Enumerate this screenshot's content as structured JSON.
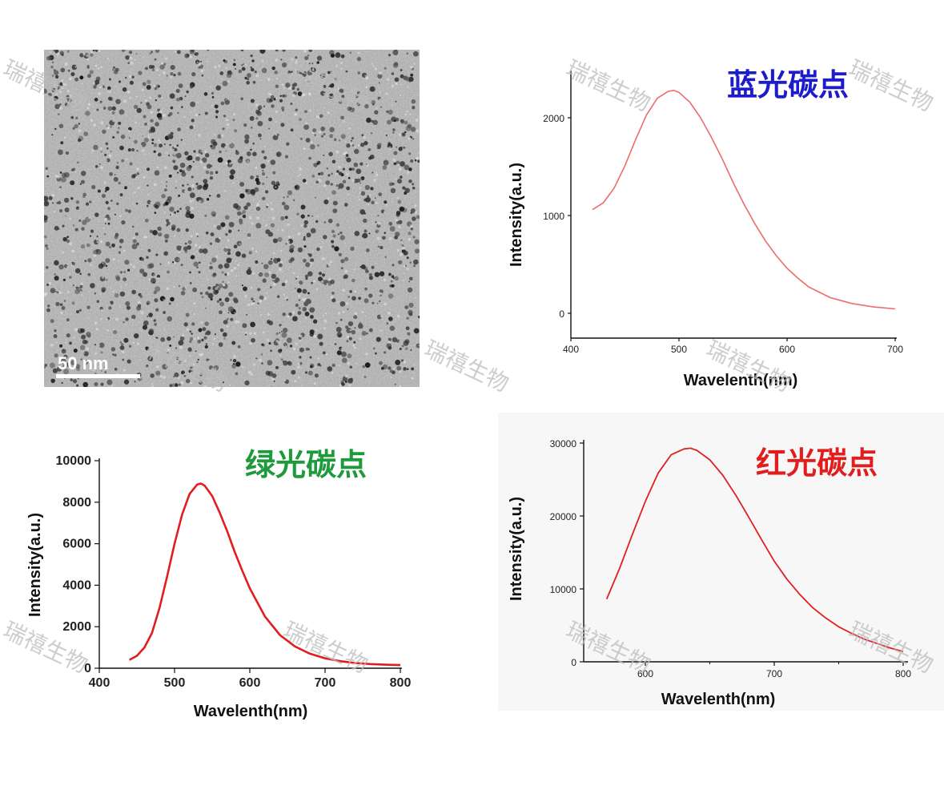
{
  "micrograph": {
    "scale_label": "50 nm"
  },
  "watermark": {
    "text": "瑞禧生物"
  },
  "chart_data": [
    {
      "type": "line",
      "title": "蓝光碳点",
      "title_color": "#1c1ccc",
      "line_color": "#ee6b6b",
      "xlabel": "Wavelenth(nm)",
      "ylabel": "Intensity(a.u.)",
      "xlim": [
        400,
        700
      ],
      "ylim": [
        -150,
        2500
      ],
      "x_ticks": [
        "400",
        "500",
        "600",
        "700"
      ],
      "y_ticks": [
        "0",
        "1000",
        "2000"
      ],
      "x_tick_values": [
        400,
        500,
        600,
        700
      ],
      "y_tick_values": [
        0,
        1000,
        2000
      ],
      "series": [
        {
          "name": "blue CDs",
          "x": [
            420,
            430,
            440,
            450,
            460,
            470,
            480,
            490,
            495,
            500,
            510,
            520,
            530,
            540,
            550,
            560,
            570,
            580,
            590,
            600,
            610,
            620,
            640,
            660,
            680,
            700
          ],
          "values": [
            1060,
            1130,
            1280,
            1510,
            1780,
            2030,
            2200,
            2270,
            2280,
            2260,
            2160,
            2000,
            1800,
            1580,
            1340,
            1120,
            920,
            740,
            590,
            460,
            360,
            270,
            160,
            100,
            65,
            45
          ]
        }
      ]
    },
    {
      "type": "line",
      "title": "绿光碳点",
      "title_color": "#1e9a3c",
      "line_color": "#e11d1d",
      "xlabel": "Wavelenth(nm)",
      "ylabel": "Intensity(a.u.)",
      "xlim": [
        400,
        800
      ],
      "ylim": [
        0,
        10000
      ],
      "x_ticks": [
        "400",
        "500",
        "600",
        "700",
        "800"
      ],
      "y_ticks": [
        "0",
        "2000",
        "4000",
        "6000",
        "8000",
        "10000"
      ],
      "x_tick_values": [
        400,
        500,
        600,
        700,
        800
      ],
      "y_tick_values": [
        0,
        2000,
        4000,
        6000,
        8000,
        10000
      ],
      "series": [
        {
          "name": "green CDs",
          "x": [
            440,
            450,
            460,
            470,
            480,
            490,
            500,
            510,
            520,
            530,
            535,
            540,
            550,
            560,
            570,
            580,
            590,
            600,
            620,
            640,
            660,
            680,
            700,
            720,
            740,
            760,
            780,
            800
          ],
          "values": [
            400,
            600,
            1000,
            1700,
            2900,
            4400,
            6000,
            7400,
            8400,
            8850,
            8900,
            8800,
            8300,
            7500,
            6600,
            5600,
            4700,
            3850,
            2500,
            1600,
            1050,
            700,
            480,
            340,
            250,
            200,
            170,
            150
          ]
        }
      ]
    },
    {
      "type": "line",
      "title": "红光碳点",
      "title_color": "#e11d1d",
      "line_color": "#e02020",
      "xlabel": "Wavelenth(nm)",
      "ylabel": "Intensity(a.u.)",
      "xlim": [
        560,
        800
      ],
      "ylim": [
        0,
        30000
      ],
      "x_ticks": [
        "600",
        "700",
        "800"
      ],
      "y_ticks": [
        "0",
        "10000",
        "20000",
        "30000"
      ],
      "x_tick_values": [
        600,
        700,
        800
      ],
      "y_tick_values": [
        0,
        10000,
        20000,
        30000
      ],
      "series": [
        {
          "name": "red CDs",
          "x": [
            570,
            580,
            590,
            600,
            610,
            620,
            630,
            635,
            640,
            650,
            660,
            670,
            680,
            690,
            700,
            710,
            720,
            730,
            740,
            750,
            760,
            770,
            780,
            790,
            800
          ],
          "values": [
            8600,
            12800,
            17500,
            22000,
            25900,
            28400,
            29200,
            29300,
            29000,
            27700,
            25600,
            22900,
            19900,
            16800,
            13800,
            11300,
            9200,
            7400,
            6000,
            4800,
            3900,
            3100,
            2500,
            1900,
            1400
          ]
        }
      ]
    }
  ]
}
